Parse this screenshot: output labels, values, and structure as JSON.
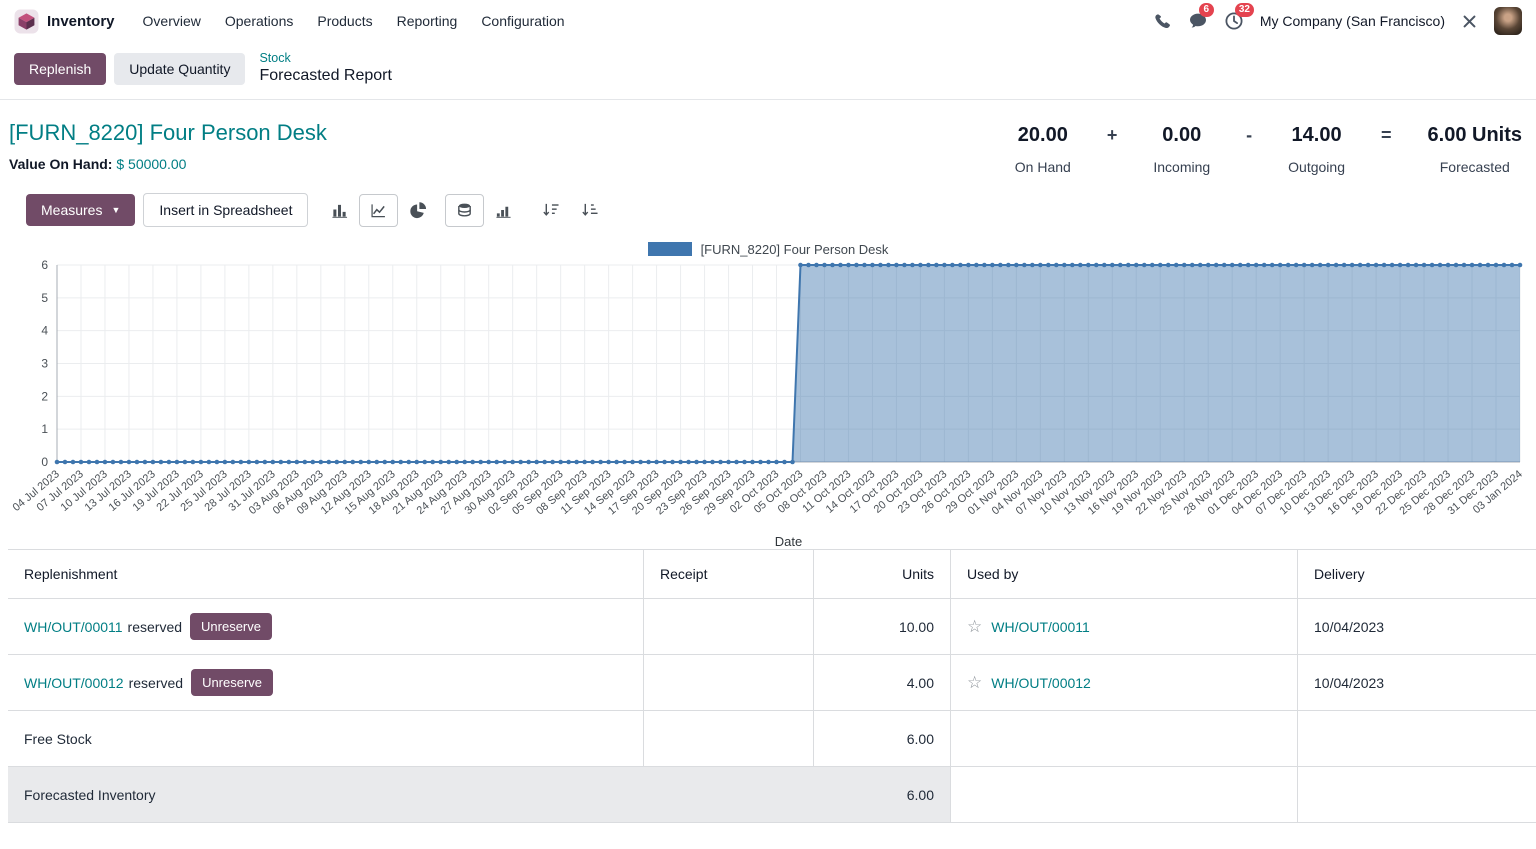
{
  "colors": {
    "primary": "#714B67",
    "link_teal": "#017e84",
    "badge_red": "#e4434f",
    "chart_line": "#3f76ae",
    "chart_fill": "rgba(63,118,174,0.45)",
    "highlight_row": "#e9eaec"
  },
  "icons": {
    "star": "☆",
    "caret_down": "▼",
    "nav_icons": [
      "phone-icon",
      "chat-bubble-icon",
      "clock-icon",
      "tools-icon"
    ],
    "toolbar_icons": [
      "bar-chart-icon",
      "line-chart-icon",
      "pie-chart-icon",
      "stacked-icon",
      "cumulative-icon",
      "sort-descending-icon",
      "sort-ascending-icon"
    ]
  },
  "nav": {
    "app_name": "Inventory",
    "items": [
      {
        "label": "Overview"
      },
      {
        "label": "Operations"
      },
      {
        "label": "Products"
      },
      {
        "label": "Reporting"
      },
      {
        "label": "Configuration"
      }
    ],
    "messages_badge": "6",
    "activities_badge": "32",
    "company": "My Company (San Francisco)"
  },
  "control_panel": {
    "replenish_label": "Replenish",
    "update_quantity_label": "Update Quantity",
    "breadcrumb_parent": "Stock",
    "breadcrumb_current": "Forecasted Report"
  },
  "product": {
    "title": "[FURN_8220] Four Person Desk",
    "value_on_hand_label": "Value On Hand:",
    "value_on_hand_amount": "$ 50000.00",
    "stats": [
      {
        "value": "20.00",
        "label": "On Hand"
      },
      {
        "value": "0.00",
        "label": "Incoming"
      },
      {
        "value": "14.00",
        "label": "Outgoing"
      },
      {
        "value": "6.00 Units",
        "label": "Forecasted"
      }
    ],
    "operators": [
      "+",
      "-",
      "="
    ]
  },
  "toolbar": {
    "measures_label": "Measures",
    "insert_label": "Insert in Spreadsheet"
  },
  "chart_data": {
    "type": "line",
    "title": "",
    "legend": [
      "[FURN_8220] Four Person Desk"
    ],
    "legend_position": "top",
    "xlabel": "Date",
    "ylabel": "",
    "ylim": [
      0,
      6
    ],
    "y_ticks": [
      0,
      1,
      2,
      3,
      4,
      5,
      6
    ],
    "grid": true,
    "points_granularity": "daily",
    "total_points": 184,
    "x_tick_labels": [
      "04 Jul 2023",
      "07 Jul 2023",
      "10 Jul 2023",
      "13 Jul 2023",
      "16 Jul 2023",
      "19 Jul 2023",
      "22 Jul 2023",
      "25 Jul 2023",
      "28 Jul 2023",
      "31 Jul 2023",
      "03 Aug 2023",
      "06 Aug 2023",
      "09 Aug 2023",
      "12 Aug 2023",
      "15 Aug 2023",
      "18 Aug 2023",
      "21 Aug 2023",
      "24 Aug 2023",
      "27 Aug 2023",
      "30 Aug 2023",
      "02 Sep 2023",
      "05 Sep 2023",
      "08 Sep 2023",
      "11 Sep 2023",
      "14 Sep 2023",
      "17 Sep 2023",
      "20 Sep 2023",
      "23 Sep 2023",
      "26 Sep 2023",
      "29 Sep 2023",
      "02 Oct 2023",
      "05 Oct 2023",
      "08 Oct 2023",
      "11 Oct 2023",
      "14 Oct 2023",
      "17 Oct 2023",
      "20 Oct 2023",
      "23 Oct 2023",
      "26 Oct 2023",
      "29 Oct 2023",
      "01 Nov 2023",
      "04 Nov 2023",
      "07 Nov 2023",
      "10 Nov 2023",
      "13 Nov 2023",
      "16 Nov 2023",
      "19 Nov 2023",
      "22 Nov 2023",
      "25 Nov 2023",
      "28 Nov 2023",
      "01 Dec 2023",
      "04 Dec 2023",
      "07 Dec 2023",
      "10 Dec 2023",
      "13 Dec 2023",
      "16 Dec 2023",
      "19 Dec 2023",
      "22 Dec 2023",
      "25 Dec 2023",
      "28 Dec 2023",
      "31 Dec 2023",
      "03 Jan 2024"
    ],
    "tick_values": [
      0,
      0,
      0,
      0,
      0,
      0,
      0,
      0,
      0,
      0,
      0,
      0,
      0,
      0,
      0,
      0,
      0,
      0,
      0,
      0,
      0,
      0,
      0,
      0,
      0,
      0,
      0,
      0,
      0,
      0,
      0,
      6,
      6,
      6,
      6,
      6,
      6,
      6,
      6,
      6,
      6,
      6,
      6,
      6,
      6,
      6,
      6,
      6,
      6,
      6,
      6,
      6,
      6,
      6,
      6,
      6,
      6,
      6,
      6,
      6,
      6,
      6
    ],
    "series": [
      {
        "name": "[FURN_8220] Four Person Desk",
        "segments": [
          {
            "from": "04 Jul 2023",
            "to": "04 Oct 2023",
            "value": 0,
            "days": 93
          },
          {
            "from": "05 Oct 2023",
            "to": "03 Jan 2024",
            "value": 6,
            "days": 91
          }
        ]
      }
    ],
    "colors": {
      "line": "#3f76ae",
      "fill": "rgba(63,118,174,0.45)"
    }
  },
  "table": {
    "headers": [
      "Replenishment",
      "Receipt",
      "Units",
      "Used by",
      "Delivery"
    ],
    "rows": [
      {
        "replenishment_link": "WH/OUT/00011",
        "replenishment_suffix": "reserved",
        "action": "Unreserve",
        "receipt": "",
        "units": "10.00",
        "used_by": "WH/OUT/00011",
        "delivery": "10/04/2023",
        "highlight": false
      },
      {
        "replenishment_link": "WH/OUT/00012",
        "replenishment_suffix": "reserved",
        "action": "Unreserve",
        "receipt": "",
        "units": "4.00",
        "used_by": "WH/OUT/00012",
        "delivery": "10/04/2023",
        "highlight": false
      },
      {
        "replenishment_text": "Free Stock",
        "receipt": "",
        "units": "6.00",
        "used_by": "",
        "delivery": "",
        "highlight": false
      },
      {
        "replenishment_text": "Forecasted Inventory",
        "receipt": "",
        "units": "6.00",
        "used_by": "",
        "delivery": "",
        "highlight": true
      }
    ]
  }
}
